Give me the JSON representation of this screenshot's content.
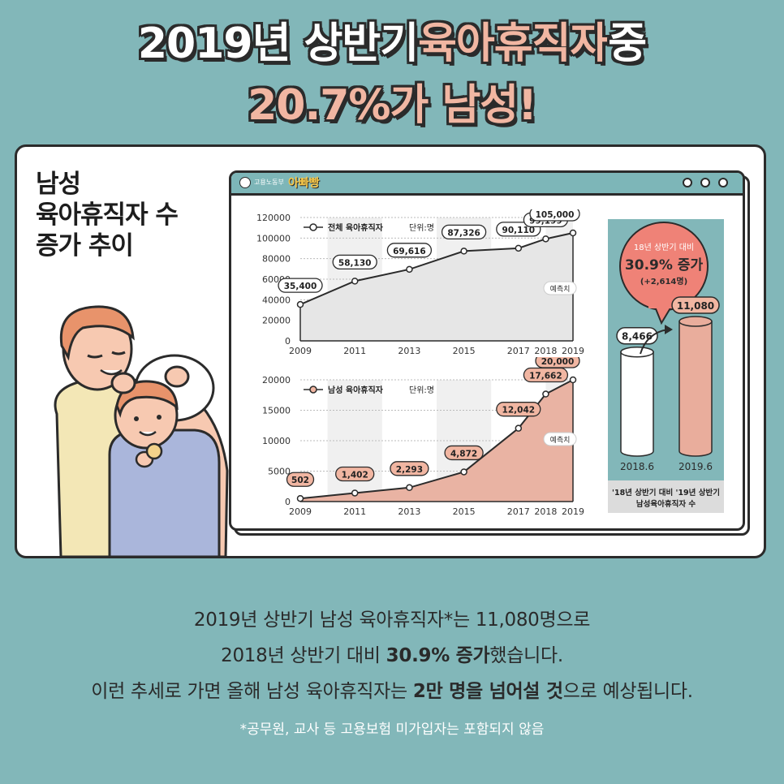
{
  "headline": {
    "line1_part1": "2019년 상반기 ",
    "line1_part2": "육아휴직자",
    "line1_part3": " 중",
    "line2": "20.7%가 남성!"
  },
  "side_title": [
    "남성",
    "육아휴직자 수",
    "증가 추이"
  ],
  "browser": {
    "org_text": "고용노동부",
    "brand_text": "아빠빵"
  },
  "chart_data": [
    {
      "type": "line",
      "legend": "전체 육아휴직자",
      "unit": "단위:명",
      "x": [
        "2009",
        "2011",
        "2013",
        "2015",
        "2017",
        "2018",
        "2019"
      ],
      "values": [
        35400,
        58130,
        69616,
        87326,
        90110,
        99199,
        105000
      ],
      "labels": [
        "35,400",
        "58,130",
        "69,616",
        "87,326",
        "90,110",
        "99,199",
        "105,000"
      ],
      "yticks": [
        "0",
        "20000",
        "40000",
        "60000",
        "80000",
        "100000",
        "120000"
      ],
      "ylim": [
        0,
        120000
      ],
      "annotation": "예측치",
      "fill": "#e6e6e6"
    },
    {
      "type": "area",
      "legend": "남성 육아휴직자",
      "unit": "단위:명",
      "x": [
        "2009",
        "2011",
        "2013",
        "2015",
        "2017",
        "2018",
        "2019"
      ],
      "values": [
        502,
        1402,
        2293,
        4872,
        12042,
        17662,
        20000
      ],
      "labels": [
        "502",
        "1,402",
        "2,293",
        "4,872",
        "12,042",
        "17,662",
        "20,000"
      ],
      "yticks": [
        "0",
        "5000",
        "10000",
        "15000",
        "20000"
      ],
      "ylim": [
        0,
        20000
      ],
      "annotation": "예측치",
      "fill": "#e9b3a3"
    },
    {
      "type": "bar",
      "categories": [
        "2018.6",
        "2019.6"
      ],
      "values": [
        8466,
        11080
      ],
      "labels": [
        "8,466",
        "11,080"
      ],
      "bubble": {
        "line1": "18년 상반기 대비",
        "line2": "30.9% 증가",
        "line3": "(+2,614명)"
      },
      "footer": [
        "'18년 상반기 대비 '19년 상반기",
        "남성육아휴직자 수"
      ],
      "colors": {
        "bar1": "#ffffff",
        "bar2": "#e9ad9c",
        "bubble": "#ef8277",
        "panel": "#82b7b9"
      }
    }
  ],
  "body": {
    "line1": "2019년 상반기 남성 육아휴직자*는 11,080명으로",
    "line2_pre": "2018년 상반기 대비 ",
    "line2_bold": "30.9% 증가",
    "line2_post": "했습니다.",
    "line3_pre": "이런 추세로 가면 올해 남성 육아휴직자는 ",
    "line3_bold1": "2만 명을 넘어설 것",
    "line3_post": "으로 예상됩니다."
  },
  "note": "*공무원, 교사 등 고용보험 미가입자는 포함되지 않음"
}
